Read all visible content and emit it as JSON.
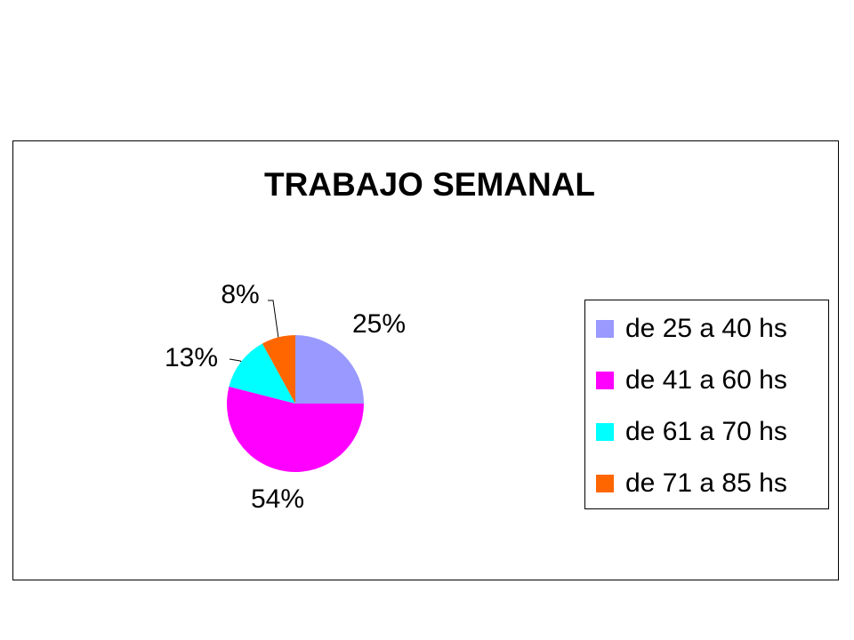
{
  "chart_data": {
    "type": "pie",
    "title": "TRABAJO SEMANAL",
    "categories": [
      "de 25 a 40 hs",
      "de 41 a 60 hs",
      "de 61 a 70 hs",
      "de 71 a 85 hs"
    ],
    "values": [
      25,
      54,
      13,
      8
    ],
    "value_labels": [
      "25%",
      "54%",
      "13%",
      "8%"
    ],
    "colors": [
      "#9999ff",
      "#ff00ff",
      "#00ffff",
      "#ff6600"
    ],
    "legend": "right"
  }
}
